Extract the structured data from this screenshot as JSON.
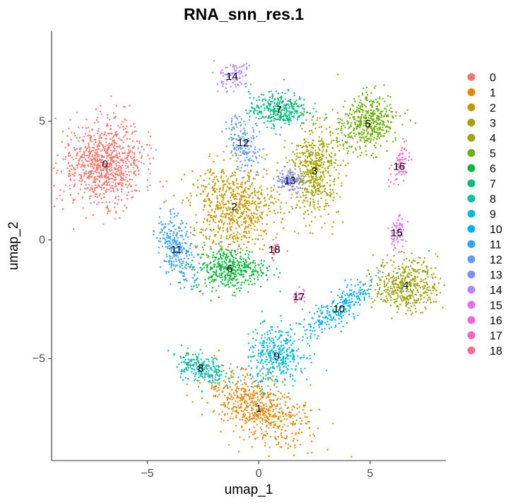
{
  "chart_data": {
    "type": "scatter",
    "title": "RNA_snn_res.1",
    "xlabel": "umap_1",
    "ylabel": "umap_2",
    "xlim": [
      -9.3,
      8.4
    ],
    "ylim": [
      -9.3,
      8.8
    ],
    "xticks": [
      -5,
      0,
      5
    ],
    "yticks": [
      5,
      0,
      -5
    ],
    "grid": false,
    "legend_position": "right",
    "clusters": [
      {
        "name": "0",
        "color": "#F8766D",
        "center": [
          -6.9,
          3.2
        ]
      },
      {
        "name": "1",
        "color": "#E58700",
        "center": [
          0.0,
          -7.1
        ]
      },
      {
        "name": "2",
        "color": "#C99800",
        "center": [
          -1.1,
          1.4
        ]
      },
      {
        "name": "3",
        "color": "#A3A500",
        "center": [
          2.5,
          2.9
        ]
      },
      {
        "name": "4",
        "color": "#A0A30D",
        "center": [
          6.6,
          -1.9
        ]
      },
      {
        "name": "5",
        "color": "#6BB100",
        "center": [
          4.9,
          4.9
        ]
      },
      {
        "name": "6",
        "color": "#00BA38",
        "center": [
          -1.3,
          -1.2
        ]
      },
      {
        "name": "7",
        "color": "#00BF7D",
        "center": [
          0.9,
          5.5
        ]
      },
      {
        "name": "8",
        "color": "#00C0AF",
        "center": [
          -2.6,
          -5.4
        ]
      },
      {
        "name": "9",
        "color": "#00BCD8",
        "center": [
          0.8,
          -4.9
        ]
      },
      {
        "name": "10",
        "color": "#00B0F6",
        "center": [
          3.6,
          -2.9
        ]
      },
      {
        "name": "11",
        "color": "#35A2FF",
        "center": [
          -3.7,
          -0.4
        ]
      },
      {
        "name": "12",
        "color": "#5B9BFF",
        "center": [
          -0.7,
          4.1
        ]
      },
      {
        "name": "13",
        "color": "#7F8CFF",
        "center": [
          1.4,
          2.5
        ]
      },
      {
        "name": "14",
        "color": "#B983FF",
        "center": [
          -1.2,
          6.9
        ]
      },
      {
        "name": "15",
        "color": "#E76BF3",
        "center": [
          6.2,
          0.3
        ]
      },
      {
        "name": "16",
        "color": "#FA62DB",
        "center": [
          6.3,
          3.1
        ]
      },
      {
        "name": "17",
        "color": "#FF62BC",
        "center": [
          1.8,
          -2.4
        ]
      },
      {
        "name": "18",
        "color": "#FF6C91",
        "center": [
          0.7,
          -0.4
        ]
      }
    ]
  }
}
